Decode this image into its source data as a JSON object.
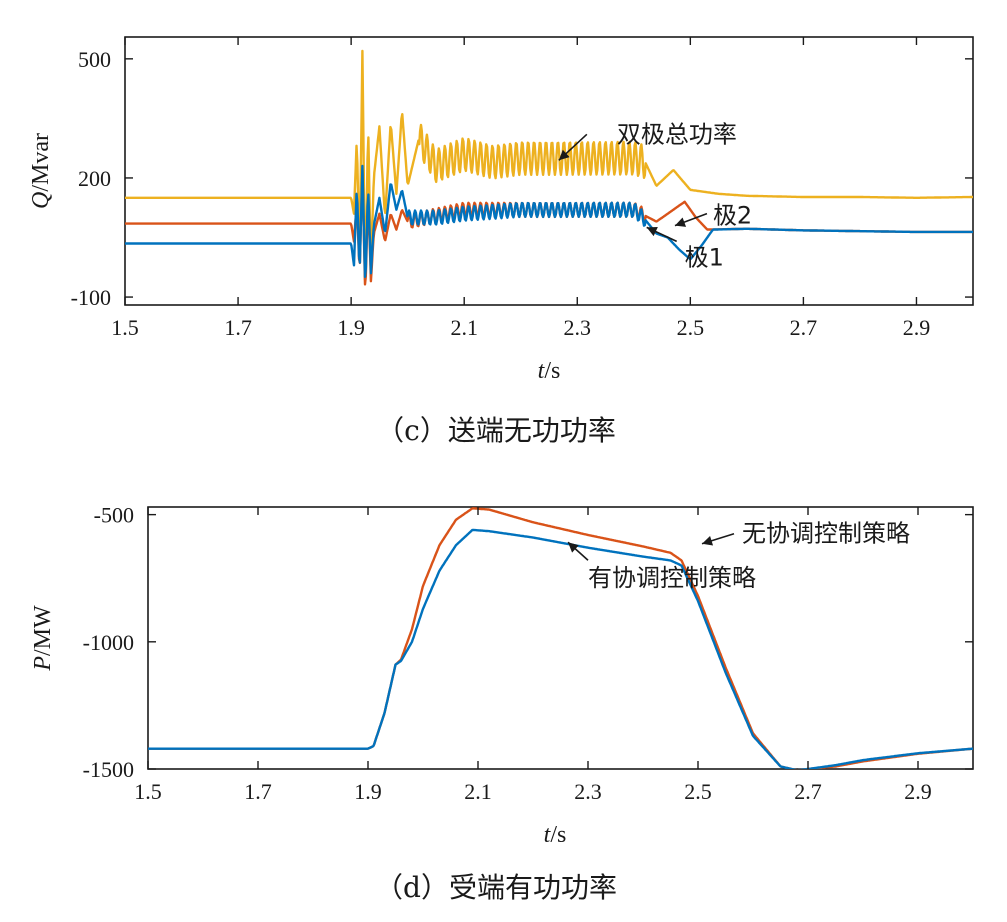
{
  "chart_data": [
    {
      "type": "line",
      "caption": "（c）送端无功功率",
      "ylabel_var": "Q",
      "ylabel_unit": "/Mvar",
      "xlabel_var": "t",
      "xlabel_unit": "/s",
      "xlim": [
        1.5,
        3.0
      ],
      "ylim": [
        -120,
        555
      ],
      "xticks": [
        "1.5",
        "1.7",
        "1.9",
        "2.1",
        "2.3",
        "2.5",
        "2.7",
        "2.9"
      ],
      "yticks": [
        "500",
        "200",
        "-100"
      ],
      "grid": false,
      "series": [
        {
          "name": "双极总功率",
          "color": "#EDB120",
          "x": [
            1.5,
            1.88,
            1.9,
            1.905,
            1.91,
            1.915,
            1.92,
            1.925,
            1.93,
            1.935,
            1.94,
            1.95,
            1.96,
            1.97,
            1.98,
            1.99,
            2.0,
            2.02,
            2.05,
            2.1,
            2.15,
            2.2,
            2.3,
            2.4,
            2.42,
            2.44,
            2.47,
            2.5,
            2.55,
            2.6,
            2.7,
            2.8,
            2.9,
            3.0
          ],
          "y": [
            150,
            150,
            150,
            110,
            300,
            -20,
            520,
            -120,
            340,
            -40,
            200,
            330,
            100,
            340,
            160,
            370,
            180,
            300,
            230,
            260,
            240,
            250,
            250,
            250,
            240,
            180,
            220,
            170,
            160,
            155,
            152,
            152,
            150,
            152
          ],
          "ripple": {
            "from": 2.02,
            "to": 2.42,
            "freq": 95,
            "amp": 42
          }
        },
        {
          "name": "极2",
          "color": "#D95319",
          "x": [
            1.5,
            1.88,
            1.9,
            1.905,
            1.91,
            1.915,
            1.92,
            1.925,
            1.93,
            1.935,
            1.94,
            1.95,
            1.96,
            1.97,
            1.98,
            1.99,
            2.0,
            2.05,
            2.1,
            2.2,
            2.3,
            2.4,
            2.42,
            2.44,
            2.47,
            2.49,
            2.51,
            2.53,
            2.6,
            2.7,
            2.8,
            2.9,
            3.0
          ],
          "y": [
            85,
            85,
            85,
            40,
            140,
            -40,
            220,
            -100,
            160,
            -60,
            60,
            110,
            40,
            110,
            70,
            120,
            90,
            105,
            120,
            120,
            120,
            120,
            105,
            90,
            120,
            140,
            100,
            70,
            72,
            68,
            66,
            64,
            64
          ],
          "ripple": {
            "from": 2.0,
            "to": 2.42,
            "freq": 95,
            "amp": 18
          }
        },
        {
          "name": "极1",
          "color": "#0072BD",
          "x": [
            1.5,
            1.88,
            1.9,
            1.905,
            1.91,
            1.915,
            1.92,
            1.925,
            1.93,
            1.935,
            1.94,
            1.95,
            1.96,
            1.97,
            1.98,
            1.99,
            2.0,
            2.05,
            2.1,
            2.2,
            2.3,
            2.4,
            2.42,
            2.44,
            2.46,
            2.48,
            2.5,
            2.52,
            2.54,
            2.6,
            2.7,
            2.8,
            2.9,
            3.0
          ],
          "y": [
            35,
            35,
            35,
            -20,
            180,
            -40,
            230,
            -80,
            180,
            -40,
            80,
            150,
            60,
            190,
            120,
            170,
            100,
            100,
            110,
            120,
            120,
            120,
            95,
            60,
            50,
            20,
            -5,
            30,
            70,
            72,
            68,
            66,
            64,
            64
          ],
          "ripple": {
            "from": 2.0,
            "to": 2.42,
            "freq": 95,
            "amp": 18
          }
        }
      ],
      "annotations": [
        {
          "text": "双极总功率",
          "x": 2.37,
          "y": 310
        },
        {
          "text": "极2",
          "x": 2.54,
          "y": 105
        },
        {
          "text": "极1",
          "x": 2.49,
          "y": 0
        }
      ]
    },
    {
      "type": "line",
      "caption": "（d）受端有功功率",
      "ylabel_var": "P",
      "ylabel_unit": "/MW",
      "xlabel_var": "t",
      "xlabel_unit": "/s",
      "xlim": [
        1.5,
        3.0
      ],
      "ylim": [
        -1500,
        -470
      ],
      "xticks": [
        "1.5",
        "1.7",
        "1.9",
        "2.1",
        "2.3",
        "2.5",
        "2.7",
        "2.9"
      ],
      "yticks": [
        "-500",
        "-1000",
        "-1500"
      ],
      "grid": false,
      "series": [
        {
          "name": "无协调控制策略",
          "color": "#D95319",
          "x": [
            1.5,
            1.8,
            1.9,
            1.91,
            1.93,
            1.95,
            1.96,
            1.98,
            2.0,
            2.03,
            2.06,
            2.09,
            2.12,
            2.2,
            2.3,
            2.4,
            2.45,
            2.47,
            2.5,
            2.55,
            2.6,
            2.65,
            2.68,
            2.7,
            2.75,
            2.8,
            2.9,
            3.0
          ],
          "y": [
            -1420,
            -1420,
            -1420,
            -1410,
            -1280,
            -1090,
            -1070,
            -950,
            -780,
            -620,
            -520,
            -475,
            -480,
            -530,
            -580,
            -625,
            -650,
            -680,
            -820,
            -1100,
            -1360,
            -1490,
            -1505,
            -1500,
            -1490,
            -1470,
            -1440,
            -1420
          ]
        },
        {
          "name": "有协调控制策略",
          "color": "#0072BD",
          "x": [
            1.5,
            1.8,
            1.9,
            1.91,
            1.93,
            1.95,
            1.96,
            1.98,
            2.0,
            2.03,
            2.06,
            2.09,
            2.12,
            2.2,
            2.3,
            2.4,
            2.45,
            2.47,
            2.5,
            2.55,
            2.6,
            2.65,
            2.68,
            2.7,
            2.75,
            2.8,
            2.9,
            3.0
          ],
          "y": [
            -1420,
            -1420,
            -1420,
            -1410,
            -1280,
            -1090,
            -1075,
            -1000,
            -870,
            -720,
            -620,
            -560,
            -565,
            -590,
            -630,
            -665,
            -680,
            -700,
            -840,
            -1120,
            -1370,
            -1490,
            -1505,
            -1500,
            -1485,
            -1465,
            -1438,
            -1420
          ]
        }
      ],
      "annotations": [
        {
          "text": "无协调控制策略",
          "x": 2.58,
          "y": -575
        },
        {
          "text": "有协调控制策略",
          "x": 2.3,
          "y": -750
        }
      ]
    }
  ]
}
